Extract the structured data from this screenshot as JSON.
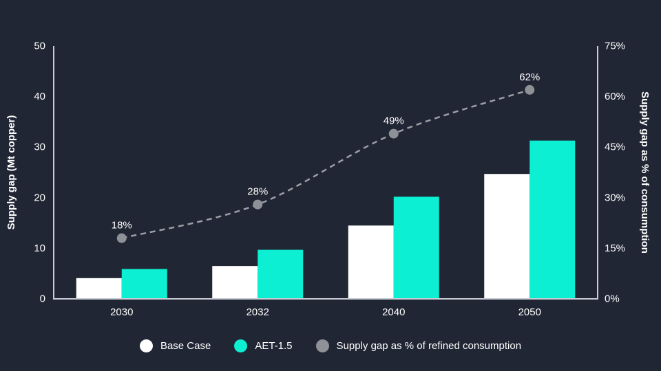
{
  "colors": {
    "background": "#212634",
    "axis_line": "#c9cdd5",
    "tick_text": "#ffffff",
    "bar_base_case": "#ffffff",
    "bar_aet": "#0cefd2",
    "line_dash": "#9b9fa6",
    "line_dot": "#8e9196",
    "point_label_text": "#ffffff"
  },
  "chart_data": {
    "type": "bar+line",
    "categories": [
      "2030",
      "2032",
      "2040",
      "2050"
    ],
    "series": [
      {
        "name": "Base Case",
        "type": "bar",
        "axis": "left",
        "color": "#ffffff",
        "values": [
          4.1,
          6.5,
          14.5,
          24.7
        ]
      },
      {
        "name": "AET-1.5",
        "type": "bar",
        "axis": "left",
        "color": "#0cefd2",
        "values": [
          5.9,
          9.7,
          20.2,
          31.3
        ]
      },
      {
        "name": "Supply gap as % of refined consumption",
        "type": "line",
        "axis": "right",
        "color": "#9b9fa6",
        "values": [
          18,
          28,
          49,
          62
        ],
        "point_labels": [
          "18%",
          "28%",
          "49%",
          "62%"
        ]
      }
    ],
    "ylabel_left": "Supply gap (Mt copper)",
    "ylabel_right": "Supply gap as % of consumption",
    "ylim_left": [
      0,
      50
    ],
    "ylim_right": [
      0,
      75
    ],
    "yticks_left": [
      "0",
      "10",
      "20",
      "30",
      "40",
      "50"
    ],
    "yticks_right": [
      "0%",
      "15%",
      "30%",
      "45%",
      "60%",
      "75%"
    ],
    "grid": "off",
    "legend_position": "bottom"
  },
  "legend": {
    "items": [
      {
        "label": "Base Case",
        "color": "#ffffff"
      },
      {
        "label": "AET-1.5",
        "color": "#0cefd2"
      },
      {
        "label": "Supply gap as % of refined consumption",
        "color": "#8e9196"
      }
    ]
  }
}
